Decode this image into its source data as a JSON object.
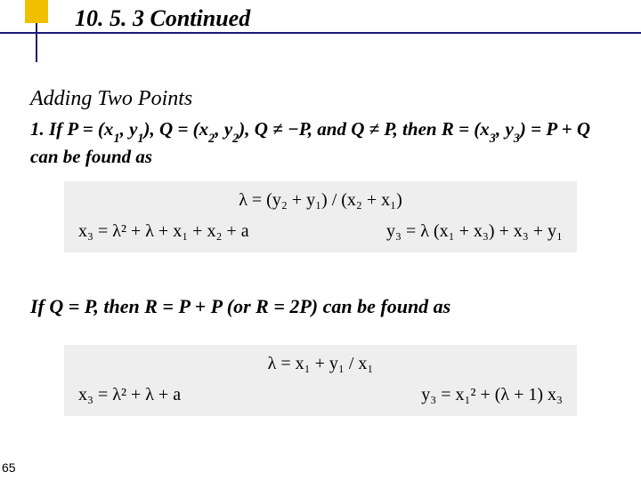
{
  "header": {
    "section": "10. 5. 3  Continued",
    "accent_color": "#f0c000",
    "line_color": "#1a1a7a"
  },
  "subtitle": "Adding Two Points",
  "para1_parts": {
    "lead": "1. If P = (x",
    "s1": "1",
    "t1": ", y",
    "s2": "1",
    "t2": "), Q = (x",
    "s3": "2",
    "t3": ", y",
    "s4": "2",
    "t4": "), Q ≠ −P, and Q ≠ P, then R = (x",
    "s5": "3",
    "t5": ", y",
    "s6": "3",
    "t6": ") = P + Q can be found as"
  },
  "eq1": {
    "lambda": "λ  =  (y₂ + y₁) / (x₂ + x₁)",
    "x3": "x₃ = λ² + λ + x₁ + x₂ + a",
    "y3": "y₃ = λ (x₁ + x₃) +  x₃ + y₁"
  },
  "para2": "If Q = P, then R = P + P (or R = 2P) can be found as",
  "eq2": {
    "lambda": "λ  =  x₁ + y₁ / x₁",
    "x3": "x₃ = λ² + λ + a",
    "y3": "y₃ = x₁² + (λ + 1) x₃"
  },
  "pagenum": "65",
  "style": {
    "bg": "#ffffff",
    "eq_bg": "#eeeeee",
    "text_color": "#000000",
    "title_fontsize": 26,
    "subtitle_fontsize": 24,
    "body_fontsize": 21,
    "eq_fontsize": 20
  }
}
